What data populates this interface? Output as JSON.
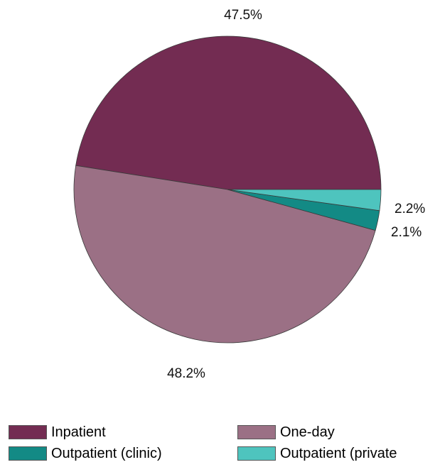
{
  "chart_data": {
    "type": "pie",
    "title": "",
    "slices": [
      {
        "label": "Inpatient",
        "value": 47.5,
        "value_label": "47.5%",
        "color": "#732c52"
      },
      {
        "label": "One-day",
        "value": 48.2,
        "value_label": "48.2%",
        "color": "#9b7085"
      },
      {
        "label": "Outpatient (clinic)",
        "value": 2.1,
        "value_label": "2.1%",
        "color": "#138a85"
      },
      {
        "label": "Outpatient (private",
        "value": 2.2,
        "value_label": "2.2%",
        "color": "#4ec4be"
      }
    ],
    "legend_position": "bottom"
  }
}
